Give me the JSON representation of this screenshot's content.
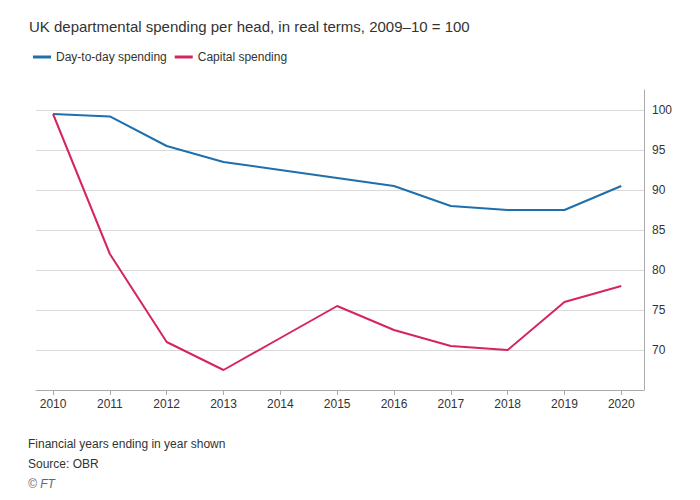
{
  "chart_data": {
    "type": "line",
    "title": "UK departmental spending per head, in real terms, 2009–10 = 100",
    "x": [
      2010,
      2011,
      2012,
      2013,
      2014,
      2015,
      2016,
      2017,
      2018,
      2019,
      2020
    ],
    "xlim": [
      2009.7,
      2020.4
    ],
    "xticks": [
      2010,
      2011,
      2012,
      2013,
      2014,
      2015,
      2016,
      2017,
      2018,
      2019,
      2020
    ],
    "ylim": [
      65,
      102.5
    ],
    "yticks": [
      70,
      75,
      80,
      85,
      90,
      95,
      100
    ],
    "series": [
      {
        "name": "Day-to-day spending",
        "color": "#1f6fad",
        "values": [
          99.5,
          99.2,
          95.5,
          93.5,
          92.5,
          91.5,
          90.5,
          88.0,
          87.5,
          87.5,
          90.5
        ]
      },
      {
        "name": "Capital spending",
        "color": "#d6245e",
        "values": [
          99.5,
          82.0,
          71.0,
          67.5,
          71.5,
          75.5,
          72.5,
          70.5,
          70.0,
          76.0,
          78.0
        ]
      }
    ],
    "grid": true,
    "legend": "upper left",
    "annotations": [
      "Financial years ending in year shown",
      "Source: OBR",
      "© FT"
    ]
  }
}
